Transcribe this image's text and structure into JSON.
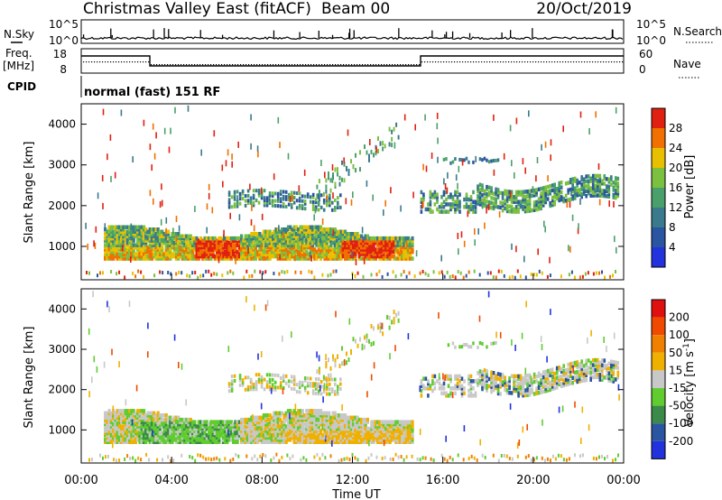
{
  "header": {
    "title": "Christmas Valley East (fitACF)",
    "beam": "Beam 00",
    "date": "20/Oct/2019"
  },
  "strips": {
    "nsky_label": "N.Sky",
    "nsky_ticks": [
      "10^5",
      "10^0"
    ],
    "nsearch_label": "N.Search",
    "nsearch_ticks": [
      "10^5",
      "10^0"
    ],
    "freq_label_top": "Freq.",
    "freq_label_unit": "[MHz]",
    "freq_ticks": [
      "18",
      "8"
    ],
    "nave_label": "Nave",
    "nave_ticks": [
      "60",
      "0"
    ],
    "cpid_label": "CPID",
    "cpid_text": "normal (fast) 151 RF"
  },
  "chart_data": [
    {
      "type": "heatmap",
      "panel": "power",
      "ylabel": "Slant Range [km]",
      "yticks": [
        "4000",
        "3000",
        "2000",
        "1000"
      ],
      "ylim": [
        180,
        4500
      ],
      "colorbar_label": "Power [dB]",
      "colorbar_ticks": [
        "28",
        "24",
        "20",
        "16",
        "12",
        "8",
        "4"
      ],
      "colors": [
        "#2233dd",
        "#2a55a0",
        "#3a7a8c",
        "#4aa06a",
        "#7cc040",
        "#e8c000",
        "#f07000",
        "#e02010"
      ]
    },
    {
      "type": "heatmap",
      "panel": "velocity",
      "ylabel": "Slant Range [km]",
      "yticks": [
        "4000",
        "3000",
        "2000",
        "1000"
      ],
      "ylim": [
        180,
        4500
      ],
      "colorbar_label": "Velocity [m s^-1]",
      "colorbar_ticks": [
        "200",
        "100",
        "50",
        "15",
        "-15",
        "-50",
        "-100",
        "-200"
      ],
      "colors": [
        "#2233dd",
        "#2a55a0",
        "#3a8a4a",
        "#60cc30",
        "#c8c8c8",
        "#f0b000",
        "#f08000",
        "#f04a00",
        "#e01010"
      ]
    }
  ],
  "xaxis": {
    "ticks": [
      "00:00",
      "04:00",
      "08:00",
      "12:00",
      "16:00",
      "20:00",
      "00:00"
    ],
    "label": "Time UT"
  },
  "colors": {
    "axis": "#000000",
    "background": "#ffffff"
  }
}
